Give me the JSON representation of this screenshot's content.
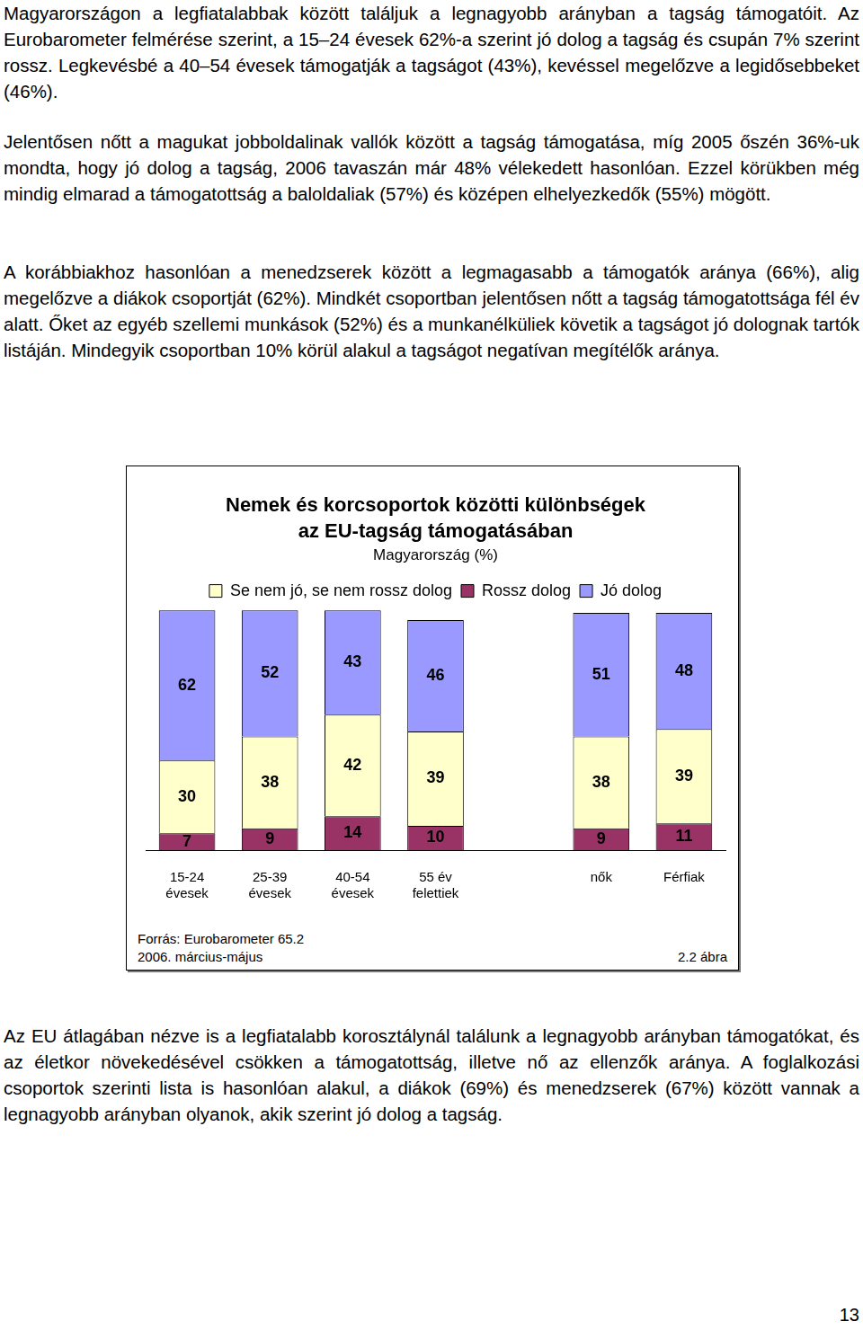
{
  "paragraphs_before": [
    "Magyarországon a legfiatalabbak között találjuk a legnagyobb arányban a tagság támogatóit. Az Eurobarometer felmérése szerint, a 15–24 évesek 62%-a szerint jó dolog a tagság és csupán 7% szerint rossz. Legkevésbé a 40–54 évesek támogatják a tagságot (43%), kevéssel megelőzve a legidősebbeket (46%).",
    "Jelentősen nőtt a magukat jobboldalinak vallók között a tagság támogatása, míg 2005 őszén 36%-uk mondta, hogy jó dolog a tagság, 2006 tavaszán már 48% vélekedett hasonlóan. Ezzel körükben még mindig elmarad a támogatottság a baloldaliak (57%) és középen elhelyezkedők (55%) mögött.",
    "A korábbiakhoz hasonlóan a menedzserek között a legmagasabb a támogatók aránya (66%), alig megelőzve a diákok csoportját (62%). Mindkét csoportban jelentősen nőtt a tagság támogatottsága fél év alatt. Őket az egyéb szellemi munkások (52%) és a munkanélküliek követik a tagságot jó dolognak tartók listáján. Mindegyik csoportban 10% körül alakul a tagságot negatívan megítélők aránya."
  ],
  "chart_data": {
    "type": "bar",
    "title": [
      "Nemek és korcsoportok közötti különbségek",
      "az EU-tagság támogatásában"
    ],
    "subtitle": "Magyarország (%)",
    "categories": [
      "15-24\névesek",
      "25-39\névesek",
      "40-54\névesek",
      "55 év\nfelettiek",
      null,
      "nők",
      "Férfiak"
    ],
    "series": [
      {
        "name": "Rossz dolog",
        "color": "#993366",
        "values": [
          7,
          9,
          14,
          10,
          null,
          9,
          11
        ]
      },
      {
        "name": "Se nem jó, se nem rossz dolog",
        "color": "#FFFFCC",
        "values": [
          30,
          38,
          42,
          39,
          null,
          38,
          39
        ]
      },
      {
        "name": "Jó dolog",
        "color": "#9999FF",
        "values": [
          62,
          52,
          43,
          46,
          null,
          51,
          48
        ]
      }
    ],
    "stacked": true,
    "data_labels": true,
    "ylim": [
      0,
      100
    ],
    "yticks": [
      0,
      100
    ],
    "grid": false,
    "tick_labels": "x",
    "legend": "top"
  },
  "source": [
    "Forrás: Eurobarometer 65.2",
    "2006. március-május"
  ],
  "figure_label": "2.2 ábra",
  "paragraphs_after": [
    "Az EU átlagában nézve is a legfiatalabb korosztálynál találunk a legnagyobb arányban támogatókat, és az életkor növekedésével csökken a támogatottság, illetve nő az ellenzők aránya. A foglalkozási csoportok szerinti lista is hasonlóan alakul, a diákok (69%) és menedzserek (67%) között vannak a legnagyobb arányban olyanok, akik szerint jó dolog a tagság."
  ],
  "page_number": "13"
}
